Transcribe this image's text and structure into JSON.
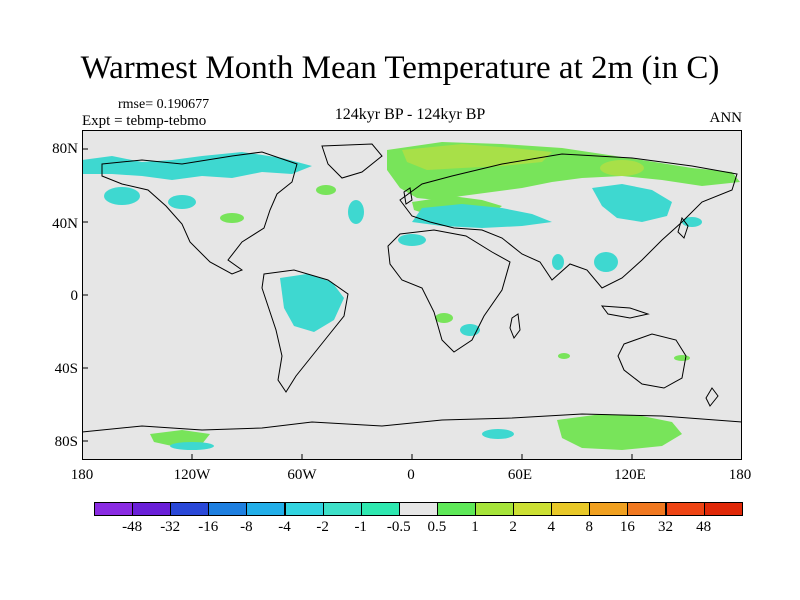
{
  "header": {
    "title": "Warmest Month Mean Temperature at 2m (in C)",
    "rmse": "rmse= 0.190677",
    "expt": "Expt = tebmp-tebmo",
    "center": "124kyr BP - 124kyr BP",
    "season": "ANN"
  },
  "axes": {
    "lat_labels": [
      "80N",
      "40N",
      "0",
      "40S",
      "80S"
    ],
    "lon_labels": [
      "180",
      "120W",
      "60W",
      "0",
      "60E",
      "120E",
      "180"
    ]
  },
  "colorbar": {
    "labels": [
      "-48",
      "-32",
      "-16",
      "-8",
      "-4",
      "-2",
      "-1",
      "-0.5",
      "0.5",
      "1",
      "2",
      "4",
      "8",
      "16",
      "32",
      "48"
    ],
    "colors": [
      "#8a2be2",
      "#6a1fd8",
      "#2a48d8",
      "#1e7fe0",
      "#22aee8",
      "#32d4e0",
      "#3ee0c8",
      "#2ee8b0",
      "#e6e6e6",
      "#5ee858",
      "#a6e43a",
      "#cce034",
      "#e8c828",
      "#f0a020",
      "#f07820",
      "#ee4414",
      "#e02808"
    ]
  },
  "map": {
    "background_color": "#e6e6e6",
    "anomaly_cool": "#3ed8d0",
    "anomaly_green": "#78e45a",
    "anomaly_yellowgreen": "#a8e048"
  }
}
